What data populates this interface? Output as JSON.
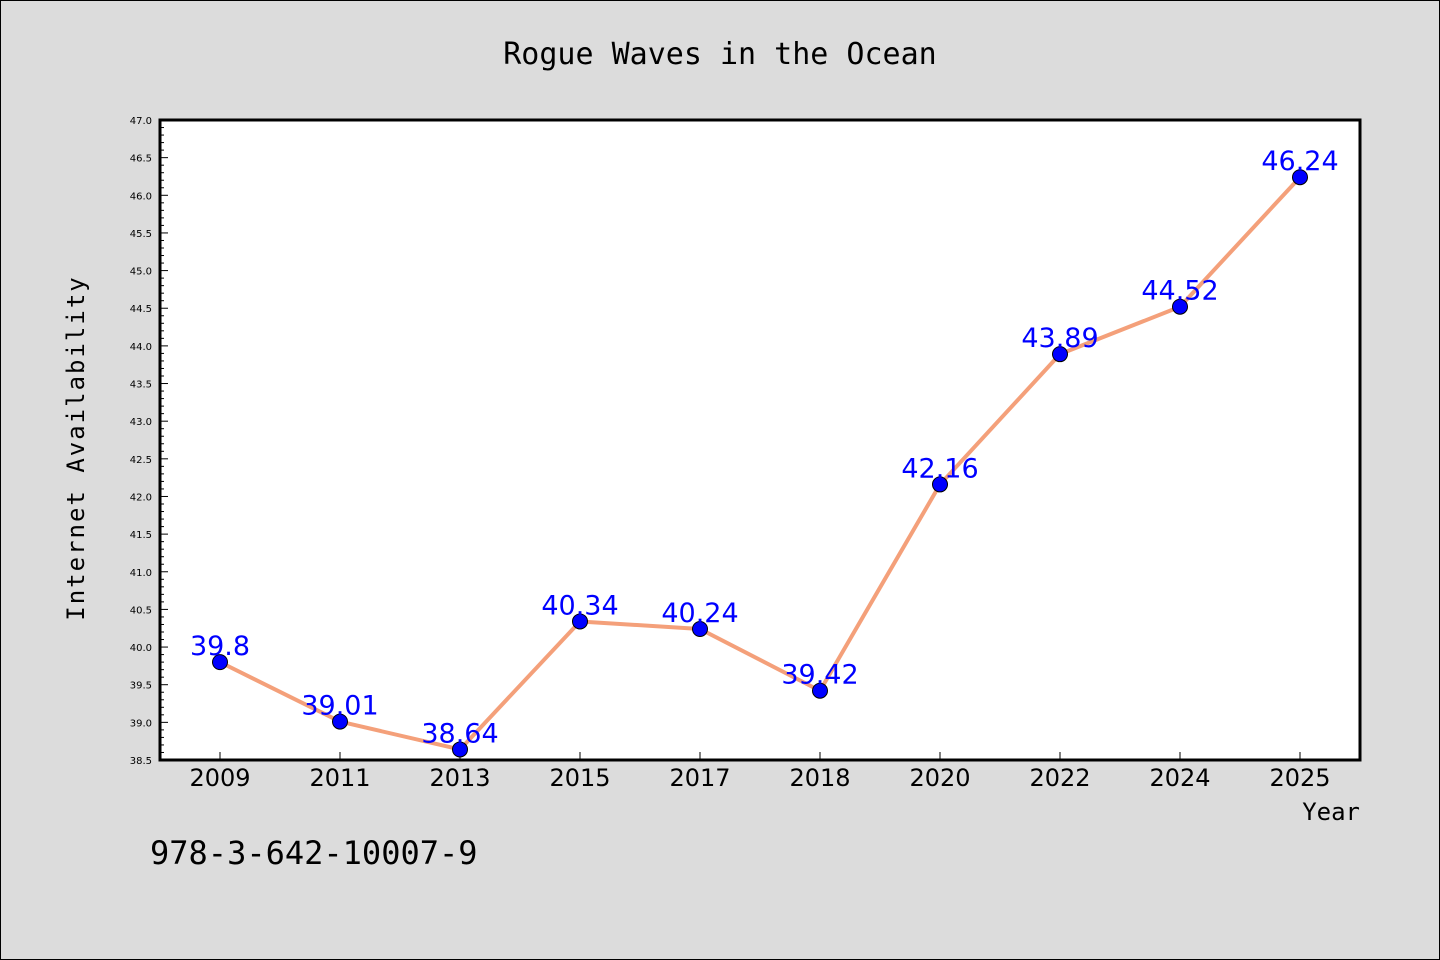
{
  "chart_data": {
    "type": "line",
    "title": "Rogue Waves in the Ocean",
    "xlabel": "Year",
    "ylabel": "Internet Availability",
    "categories": [
      "2009",
      "2011",
      "2013",
      "2015",
      "2017",
      "2018",
      "2020",
      "2022",
      "2024",
      "2025"
    ],
    "series": [
      {
        "values": [
          39.8,
          39.01,
          38.64,
          40.34,
          40.24,
          39.42,
          42.16,
          43.89,
          44.52,
          46.24
        ],
        "data_labels": [
          "39.8",
          "39.01",
          "38.64",
          "40.34",
          "40.24",
          "39.42",
          "42.16",
          "43.89",
          "44.52",
          "46.24"
        ],
        "line_color": "#f4a07a",
        "marker_color": "#0000ff"
      }
    ],
    "ylim": [
      38.5,
      47.0
    ],
    "yticks": [
      "38.5",
      "39.0",
      "39.5",
      "40.0",
      "40.5",
      "41.0",
      "41.5",
      "42.0",
      "42.5",
      "43.0",
      "43.5",
      "44.0",
      "44.5",
      "45.0",
      "45.5",
      "46.0",
      "46.5",
      "47.0"
    ],
    "grid": false,
    "legend": "none"
  },
  "footer_text": "978-3-642-10007-9",
  "colors": {
    "background": "#dcdcdc",
    "plot_background": "#ffffff",
    "line": "#f4a07a",
    "marker": "#0000ff",
    "data_label": "#0000ff"
  }
}
